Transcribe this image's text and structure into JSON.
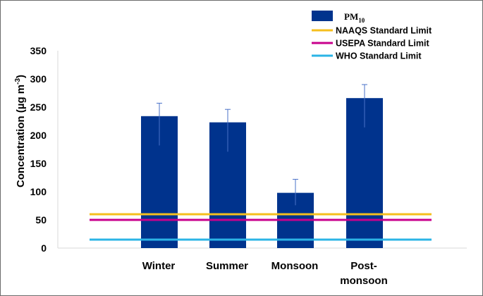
{
  "chart_data": {
    "type": "bar",
    "title": "",
    "xlabel": "",
    "ylabel": "Concentration (µg m⁻³)",
    "ylabel_main": "Concentration (µg m",
    "ylabel_sup": "-3",
    "ylabel_close": ")",
    "ylim": [
      0,
      350
    ],
    "yticks": [
      0,
      50,
      100,
      150,
      200,
      250,
      300,
      350
    ],
    "categories": [
      "Winter",
      "Summer",
      "Monsoon",
      "Post-monsoon"
    ],
    "category_lines": [
      [
        "Winter"
      ],
      [
        "Summer"
      ],
      [
        "Monsoon"
      ],
      [
        "Post-",
        "monsoon"
      ]
    ],
    "series": [
      {
        "name": "PM10",
        "name_base": "PM",
        "name_sub": "10",
        "color": "#00338d",
        "values": [
          234,
          223,
          98,
          266
        ],
        "error_upper": [
          23,
          23,
          24,
          24
        ],
        "error_lower": [
          52,
          52,
          22,
          52
        ]
      }
    ],
    "reference_lines": [
      {
        "name": "NAAQS Standard Limit",
        "value": 60,
        "color": "#f5bf1e"
      },
      {
        "name": "USEPA Standard Limit",
        "value": 50,
        "color": "#c8008c"
      },
      {
        "name": "WHO Standard Limit",
        "value": 15,
        "color": "#2bb4e6"
      }
    ],
    "grid": false,
    "legend_position": "top-right"
  }
}
